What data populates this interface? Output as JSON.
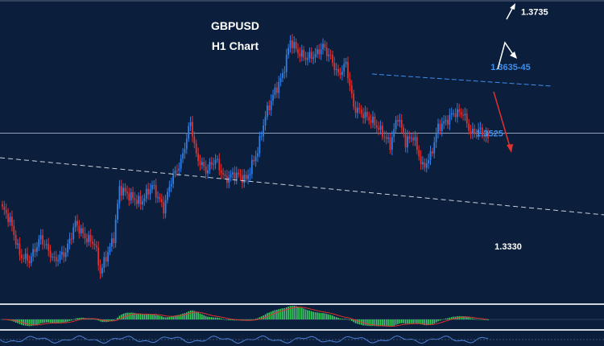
{
  "chart_data": {
    "type": "candlestick",
    "title": "GBPUSD",
    "subtitle": "H1 Chart",
    "colors": {
      "background": "#0b1e3b",
      "bull": "#2f7fe6",
      "bear": "#e0322f",
      "white": "#ffffff",
      "blue_label": "#3d8ff0",
      "red_arrow": "#e0322f",
      "histogram": "#3ccf63",
      "signal": "#e0322f",
      "oscillator": "#4f7fd6",
      "panel_border": "#d0d6e0"
    },
    "y_range": [
      1.3248,
      1.3748
    ],
    "horizontal_level": 1.3525,
    "annotations": [
      {
        "text": "1.3735",
        "value": 1.3735,
        "color": "white"
      },
      {
        "text": "1.3635-45",
        "value": 1.364,
        "color": "blue"
      },
      {
        "text": "1.3525",
        "value": 1.3525,
        "color": "blue"
      },
      {
        "text": "1.3330",
        "value": 1.333,
        "color": "white"
      }
    ],
    "anchors": [
      [
        0,
        1.3395
      ],
      [
        4,
        1.3375
      ],
      [
        9,
        1.3315
      ],
      [
        14,
        1.3305
      ],
      [
        20,
        1.3345
      ],
      [
        27,
        1.3305
      ],
      [
        33,
        1.332
      ],
      [
        38,
        1.337
      ],
      [
        43,
        1.3345
      ],
      [
        48,
        1.3335
      ],
      [
        51,
        1.3285
      ],
      [
        55,
        1.332
      ],
      [
        58,
        1.3345
      ],
      [
        61,
        1.343
      ],
      [
        67,
        1.3415
      ],
      [
        72,
        1.3405
      ],
      [
        78,
        1.3435
      ],
      [
        84,
        1.3395
      ],
      [
        88,
        1.3445
      ],
      [
        93,
        1.3475
      ],
      [
        98,
        1.3545
      ],
      [
        101,
        1.3485
      ],
      [
        106,
        1.346
      ],
      [
        111,
        1.348
      ],
      [
        116,
        1.3445
      ],
      [
        121,
        1.3455
      ],
      [
        127,
        1.3445
      ],
      [
        133,
        1.3495
      ],
      [
        137,
        1.3555
      ],
      [
        141,
        1.359
      ],
      [
        146,
        1.3625
      ],
      [
        150,
        1.3685
      ],
      [
        154,
        1.3665
      ],
      [
        158,
        1.3655
      ],
      [
        163,
        1.366
      ],
      [
        167,
        1.3675
      ],
      [
        171,
        1.3655
      ],
      [
        175,
        1.3625
      ],
      [
        179,
        1.3645
      ],
      [
        183,
        1.357
      ],
      [
        187,
        1.356
      ],
      [
        193,
        1.3545
      ],
      [
        198,
        1.3525
      ],
      [
        202,
        1.3505
      ],
      [
        206,
        1.3555
      ],
      [
        210,
        1.351
      ],
      [
        214,
        1.352
      ],
      [
        219,
        1.3465
      ],
      [
        223,
        1.3485
      ],
      [
        227,
        1.3535
      ],
      [
        231,
        1.3545
      ],
      [
        235,
        1.356
      ],
      [
        240,
        1.356
      ],
      [
        244,
        1.3525
      ],
      [
        249,
        1.353
      ],
      [
        253,
        1.3515
      ]
    ]
  }
}
